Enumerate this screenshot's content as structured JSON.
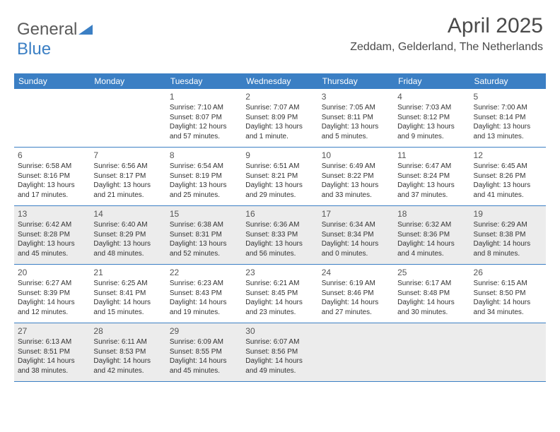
{
  "logo": {
    "part1": "General",
    "part2": "Blue"
  },
  "title": "April 2025",
  "location": "Zeddam, Gelderland, The Netherlands",
  "day_names": [
    "Sunday",
    "Monday",
    "Tuesday",
    "Wednesday",
    "Thursday",
    "Friday",
    "Saturday"
  ],
  "colors": {
    "header_bg": "#3b7fc4",
    "shade_bg": "#ececec",
    "text": "#333333"
  },
  "weeks": [
    [
      {
        "num": "",
        "sunrise": "",
        "sunset": "",
        "daylight": ""
      },
      {
        "num": "",
        "sunrise": "",
        "sunset": "",
        "daylight": ""
      },
      {
        "num": "1",
        "sunrise": "Sunrise: 7:10 AM",
        "sunset": "Sunset: 8:07 PM",
        "daylight": "Daylight: 12 hours and 57 minutes."
      },
      {
        "num": "2",
        "sunrise": "Sunrise: 7:07 AM",
        "sunset": "Sunset: 8:09 PM",
        "daylight": "Daylight: 13 hours and 1 minute."
      },
      {
        "num": "3",
        "sunrise": "Sunrise: 7:05 AM",
        "sunset": "Sunset: 8:11 PM",
        "daylight": "Daylight: 13 hours and 5 minutes."
      },
      {
        "num": "4",
        "sunrise": "Sunrise: 7:03 AM",
        "sunset": "Sunset: 8:12 PM",
        "daylight": "Daylight: 13 hours and 9 minutes."
      },
      {
        "num": "5",
        "sunrise": "Sunrise: 7:00 AM",
        "sunset": "Sunset: 8:14 PM",
        "daylight": "Daylight: 13 hours and 13 minutes."
      }
    ],
    [
      {
        "num": "6",
        "sunrise": "Sunrise: 6:58 AM",
        "sunset": "Sunset: 8:16 PM",
        "daylight": "Daylight: 13 hours and 17 minutes."
      },
      {
        "num": "7",
        "sunrise": "Sunrise: 6:56 AM",
        "sunset": "Sunset: 8:17 PM",
        "daylight": "Daylight: 13 hours and 21 minutes."
      },
      {
        "num": "8",
        "sunrise": "Sunrise: 6:54 AM",
        "sunset": "Sunset: 8:19 PM",
        "daylight": "Daylight: 13 hours and 25 minutes."
      },
      {
        "num": "9",
        "sunrise": "Sunrise: 6:51 AM",
        "sunset": "Sunset: 8:21 PM",
        "daylight": "Daylight: 13 hours and 29 minutes."
      },
      {
        "num": "10",
        "sunrise": "Sunrise: 6:49 AM",
        "sunset": "Sunset: 8:22 PM",
        "daylight": "Daylight: 13 hours and 33 minutes."
      },
      {
        "num": "11",
        "sunrise": "Sunrise: 6:47 AM",
        "sunset": "Sunset: 8:24 PM",
        "daylight": "Daylight: 13 hours and 37 minutes."
      },
      {
        "num": "12",
        "sunrise": "Sunrise: 6:45 AM",
        "sunset": "Sunset: 8:26 PM",
        "daylight": "Daylight: 13 hours and 41 minutes."
      }
    ],
    [
      {
        "num": "13",
        "sunrise": "Sunrise: 6:42 AM",
        "sunset": "Sunset: 8:28 PM",
        "daylight": "Daylight: 13 hours and 45 minutes."
      },
      {
        "num": "14",
        "sunrise": "Sunrise: 6:40 AM",
        "sunset": "Sunset: 8:29 PM",
        "daylight": "Daylight: 13 hours and 48 minutes."
      },
      {
        "num": "15",
        "sunrise": "Sunrise: 6:38 AM",
        "sunset": "Sunset: 8:31 PM",
        "daylight": "Daylight: 13 hours and 52 minutes."
      },
      {
        "num": "16",
        "sunrise": "Sunrise: 6:36 AM",
        "sunset": "Sunset: 8:33 PM",
        "daylight": "Daylight: 13 hours and 56 minutes."
      },
      {
        "num": "17",
        "sunrise": "Sunrise: 6:34 AM",
        "sunset": "Sunset: 8:34 PM",
        "daylight": "Daylight: 14 hours and 0 minutes."
      },
      {
        "num": "18",
        "sunrise": "Sunrise: 6:32 AM",
        "sunset": "Sunset: 8:36 PM",
        "daylight": "Daylight: 14 hours and 4 minutes."
      },
      {
        "num": "19",
        "sunrise": "Sunrise: 6:29 AM",
        "sunset": "Sunset: 8:38 PM",
        "daylight": "Daylight: 14 hours and 8 minutes."
      }
    ],
    [
      {
        "num": "20",
        "sunrise": "Sunrise: 6:27 AM",
        "sunset": "Sunset: 8:39 PM",
        "daylight": "Daylight: 14 hours and 12 minutes."
      },
      {
        "num": "21",
        "sunrise": "Sunrise: 6:25 AM",
        "sunset": "Sunset: 8:41 PM",
        "daylight": "Daylight: 14 hours and 15 minutes."
      },
      {
        "num": "22",
        "sunrise": "Sunrise: 6:23 AM",
        "sunset": "Sunset: 8:43 PM",
        "daylight": "Daylight: 14 hours and 19 minutes."
      },
      {
        "num": "23",
        "sunrise": "Sunrise: 6:21 AM",
        "sunset": "Sunset: 8:45 PM",
        "daylight": "Daylight: 14 hours and 23 minutes."
      },
      {
        "num": "24",
        "sunrise": "Sunrise: 6:19 AM",
        "sunset": "Sunset: 8:46 PM",
        "daylight": "Daylight: 14 hours and 27 minutes."
      },
      {
        "num": "25",
        "sunrise": "Sunrise: 6:17 AM",
        "sunset": "Sunset: 8:48 PM",
        "daylight": "Daylight: 14 hours and 30 minutes."
      },
      {
        "num": "26",
        "sunrise": "Sunrise: 6:15 AM",
        "sunset": "Sunset: 8:50 PM",
        "daylight": "Daylight: 14 hours and 34 minutes."
      }
    ],
    [
      {
        "num": "27",
        "sunrise": "Sunrise: 6:13 AM",
        "sunset": "Sunset: 8:51 PM",
        "daylight": "Daylight: 14 hours and 38 minutes."
      },
      {
        "num": "28",
        "sunrise": "Sunrise: 6:11 AM",
        "sunset": "Sunset: 8:53 PM",
        "daylight": "Daylight: 14 hours and 42 minutes."
      },
      {
        "num": "29",
        "sunrise": "Sunrise: 6:09 AM",
        "sunset": "Sunset: 8:55 PM",
        "daylight": "Daylight: 14 hours and 45 minutes."
      },
      {
        "num": "30",
        "sunrise": "Sunrise: 6:07 AM",
        "sunset": "Sunset: 8:56 PM",
        "daylight": "Daylight: 14 hours and 49 minutes."
      },
      {
        "num": "",
        "sunrise": "",
        "sunset": "",
        "daylight": ""
      },
      {
        "num": "",
        "sunrise": "",
        "sunset": "",
        "daylight": ""
      },
      {
        "num": "",
        "sunrise": "",
        "sunset": "",
        "daylight": ""
      }
    ]
  ],
  "shaded_weeks": [
    2,
    4
  ]
}
